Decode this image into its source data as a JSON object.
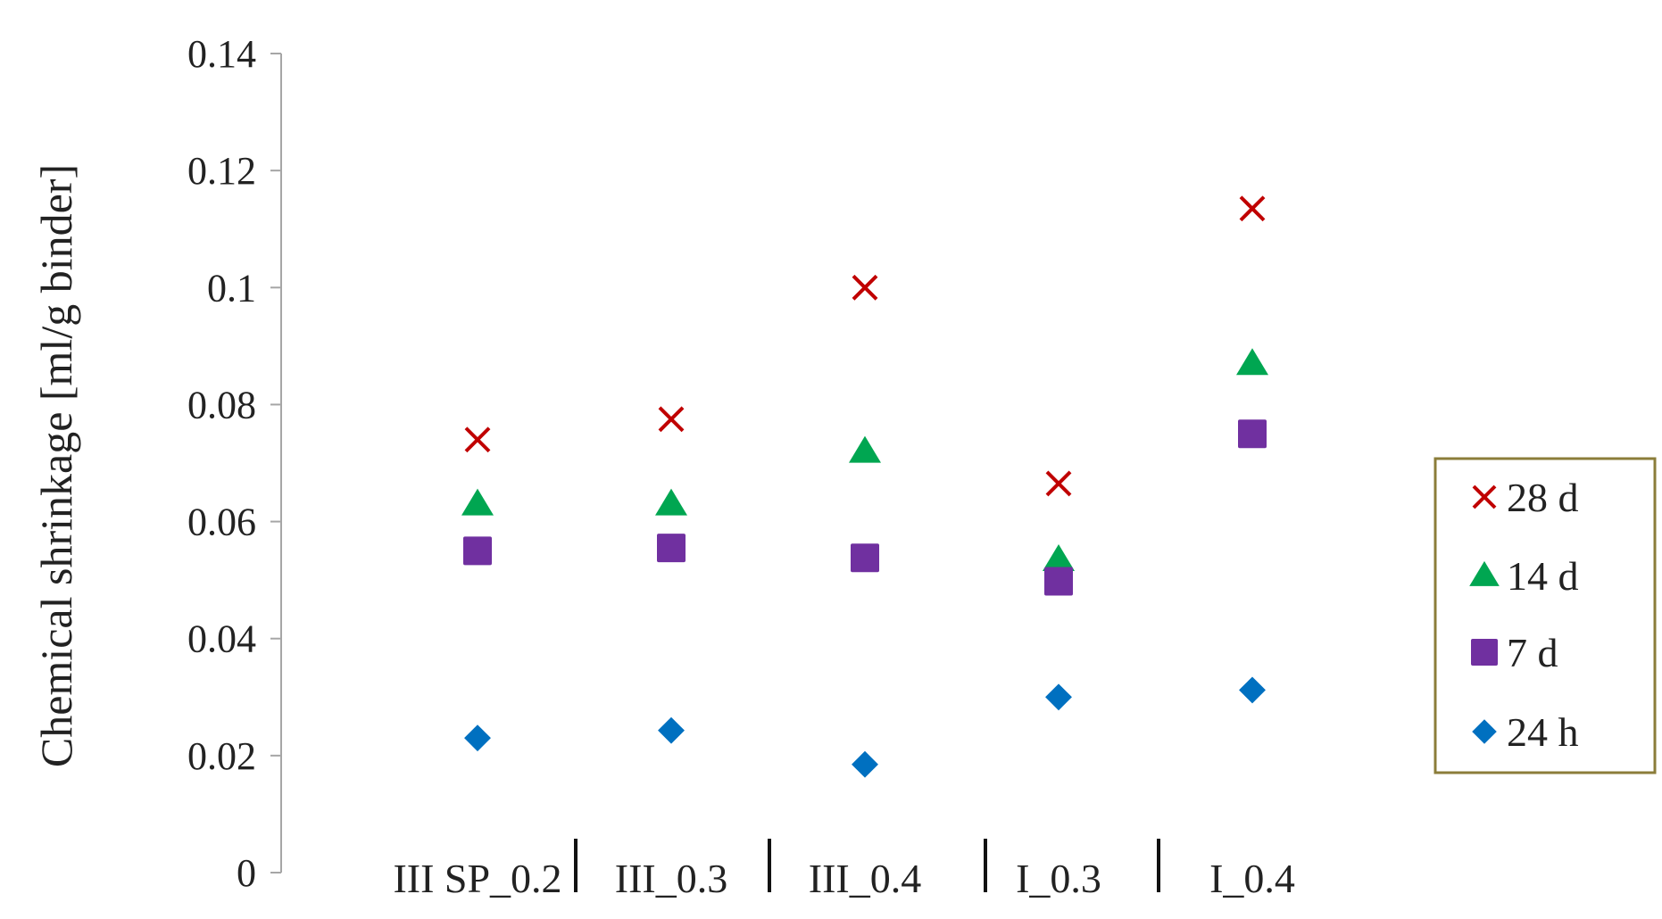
{
  "chart_data": {
    "type": "scatter",
    "title": "",
    "xlabel": "",
    "ylabel": "Chemical shrinkage [ml/g binder]",
    "ylim": [
      0,
      0.14
    ],
    "yticks": [
      "0",
      "0.02",
      "0.04",
      "0.06",
      "0.08",
      "0.1",
      "0.12",
      "0.14"
    ],
    "categories": [
      "III SP_0.2",
      "III_0.3",
      "III_0.4",
      "I_0.3",
      "I_0.4"
    ],
    "grid": false,
    "legend_position": "right",
    "series": [
      {
        "name": "28 d",
        "marker": "cross",
        "color": "#C00000",
        "values": [
          0.074,
          0.0775,
          0.1,
          0.0665,
          0.1135
        ]
      },
      {
        "name": "14 d",
        "marker": "triangle",
        "color": "#00A651",
        "values": [
          0.063,
          0.063,
          0.072,
          0.0535,
          0.087
        ]
      },
      {
        "name": "7 d",
        "marker": "square",
        "color": "#7030A0",
        "values": [
          0.055,
          0.0555,
          0.0538,
          0.0498,
          0.075
        ]
      },
      {
        "name": "24 h",
        "marker": "diamond",
        "color": "#0070C0",
        "values": [
          0.023,
          0.0243,
          0.0185,
          0.03,
          0.0312
        ]
      }
    ],
    "legend_border_color": "#8B7D3A",
    "axis_color": "#A6A6A6"
  }
}
